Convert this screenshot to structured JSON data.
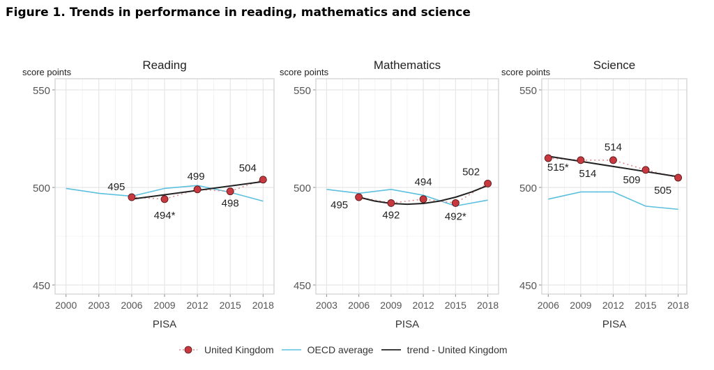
{
  "title": "Figure 1. Trends in performance in reading, mathematics and science",
  "colors": {
    "uk": "#c8393f",
    "oecd": "#5bc0de",
    "trend": "#222222",
    "grid": "#e6e6e6",
    "border": "#cfcfcf"
  },
  "chart_data": [
    {
      "type": "line",
      "title": "Reading",
      "ylabel": "score points",
      "xlabel": "PISA",
      "x_ticks": [
        "2000",
        "2003",
        "2006",
        "2009",
        "2012",
        "2015",
        "2018"
      ],
      "y_ticks": [
        450,
        500,
        550
      ],
      "ylim": [
        445,
        556
      ],
      "xlim": [
        1999,
        2019
      ],
      "grid": true,
      "series": [
        {
          "name": "United Kingdom",
          "x": [
            2006,
            2009,
            2012,
            2015,
            2018
          ],
          "y": [
            495,
            494,
            499,
            498,
            504
          ],
          "labels": [
            "495",
            "494*",
            "499",
            "498",
            "504"
          ]
        },
        {
          "name": "OECD average",
          "x": [
            2000,
            2003,
            2006,
            2009,
            2012,
            2015,
            2018
          ],
          "y": [
            499.5,
            497,
            495.5,
            499.5,
            501,
            497.5,
            493
          ]
        },
        {
          "name": "trend - United Kingdom",
          "x": [
            2006,
            2018
          ],
          "y": [
            494,
            503
          ]
        }
      ]
    },
    {
      "type": "line",
      "title": "Mathematics",
      "ylabel": "score points",
      "xlabel": "PISA",
      "x_ticks": [
        "2003",
        "2006",
        "2009",
        "2012",
        "2015",
        "2018"
      ],
      "y_ticks": [
        450,
        500,
        550
      ],
      "ylim": [
        445,
        556
      ],
      "xlim": [
        2002,
        2019
      ],
      "grid": true,
      "series": [
        {
          "name": "United Kingdom",
          "x": [
            2006,
            2009,
            2012,
            2015,
            2018
          ],
          "y": [
            495,
            492,
            494,
            492,
            502
          ],
          "labels": [
            "495",
            "492",
            "494",
            "492*",
            "502"
          ]
        },
        {
          "name": "OECD average",
          "x": [
            2003,
            2006,
            2009,
            2012,
            2015,
            2018
          ],
          "y": [
            499,
            497,
            499,
            496,
            490.5,
            493.5
          ]
        },
        {
          "name": "trend - United Kingdom",
          "x": [
            2006,
            2007.5,
            2009,
            2010.5,
            2012,
            2013.5,
            2015,
            2016.5,
            2018
          ],
          "y": [
            495,
            493,
            491.8,
            491.4,
            491.8,
            493,
            495,
            497.7,
            501
          ]
        }
      ]
    },
    {
      "type": "line",
      "title": "Science",
      "ylabel": "score points",
      "xlabel": "PISA",
      "x_ticks": [
        "2006",
        "2009",
        "2012",
        "2015",
        "2018"
      ],
      "y_ticks": [
        450,
        500,
        550
      ],
      "ylim": [
        445,
        556
      ],
      "xlim": [
        2005.4,
        2018.8
      ],
      "grid": true,
      "series": [
        {
          "name": "United Kingdom",
          "x": [
            2006,
            2009,
            2012,
            2015,
            2018
          ],
          "y": [
            515,
            514,
            514,
            509,
            505
          ],
          "labels": [
            "515*",
            "514",
            "514",
            "509",
            "505"
          ]
        },
        {
          "name": "OECD average",
          "x": [
            2006,
            2009,
            2012,
            2015,
            2018
          ],
          "y": [
            494,
            497.7,
            497.7,
            490.4,
            488.8
          ]
        },
        {
          "name": "trend - United Kingdom",
          "x": [
            2006,
            2018
          ],
          "y": [
            516,
            505.5
          ]
        }
      ]
    }
  ],
  "legend": [
    {
      "label": "United Kingdom"
    },
    {
      "label": "OECD average"
    },
    {
      "label": "trend - United Kingdom"
    }
  ]
}
